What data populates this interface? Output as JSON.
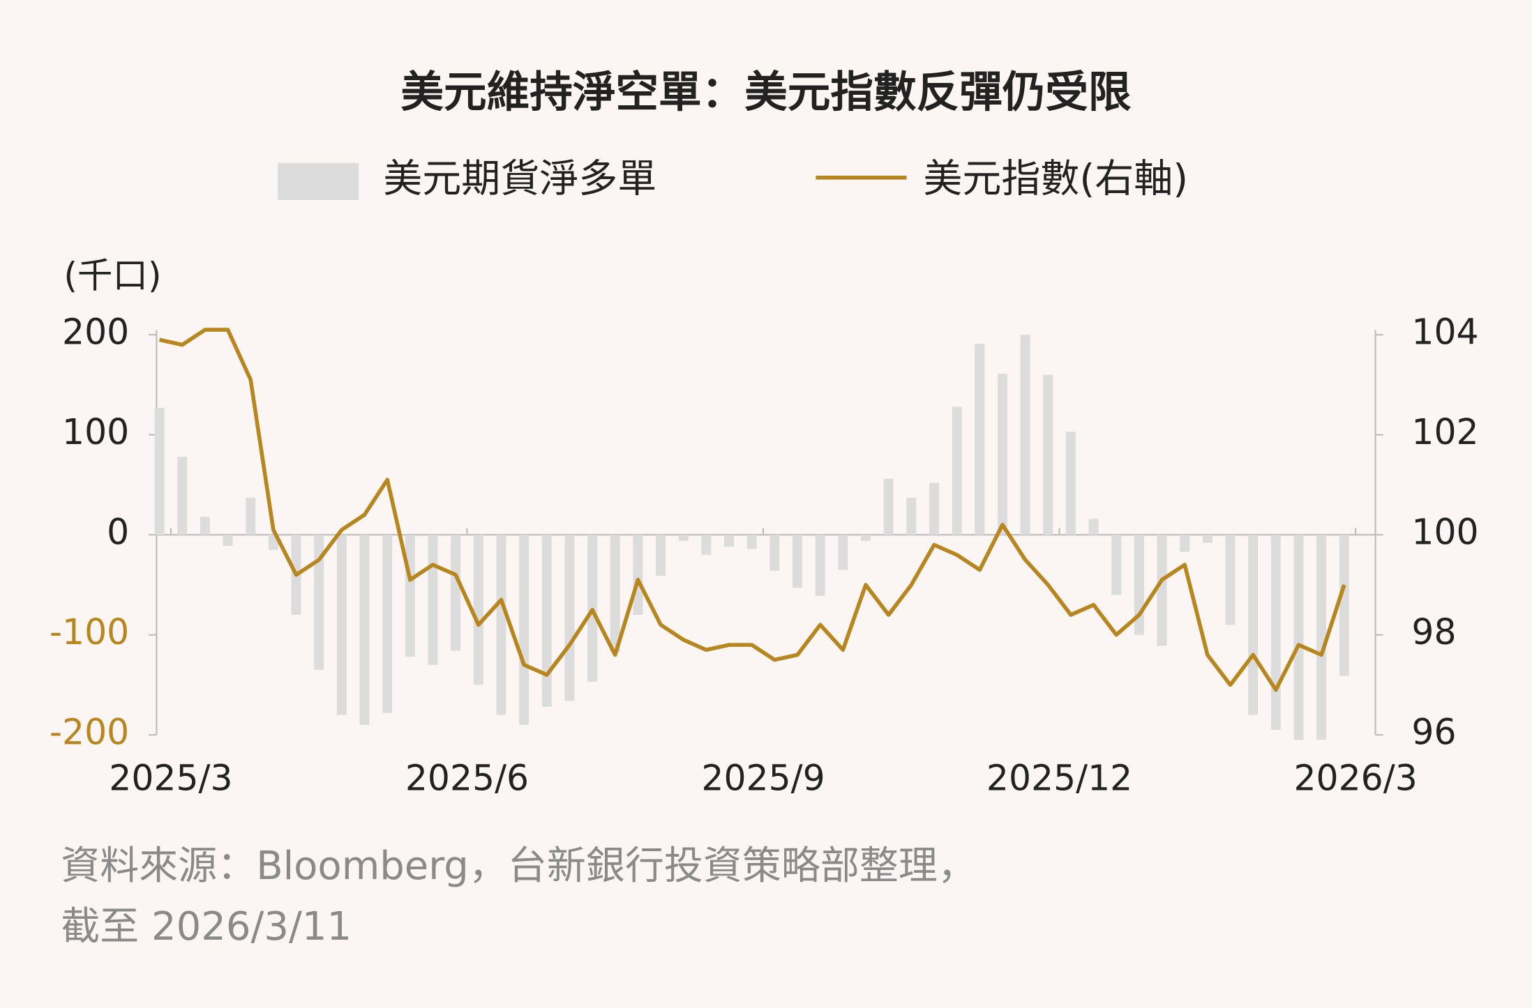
{
  "chart_data": {
    "type": "bar+line",
    "title": "美元維持淨空單：美元指數反彈仍受限",
    "y_label": "(千口)",
    "source": "資料來源：Bloomberg，台新銀行投資策略部整理，",
    "note": "截至 2026/3/11",
    "categories": [
      "2025/3",
      null,
      null,
      null,
      null,
      null,
      null,
      null,
      null,
      null,
      null,
      null,
      null,
      "2025/6",
      null,
      null,
      null,
      null,
      null,
      null,
      null,
      null,
      null,
      null,
      null,
      null,
      "2025/9",
      null,
      null,
      null,
      null,
      null,
      null,
      null,
      null,
      null,
      null,
      null,
      null,
      "2025/12",
      null,
      null,
      null,
      null,
      null,
      null,
      null,
      null,
      null,
      null,
      null,
      null,
      "2026/3"
    ],
    "series": [
      {
        "name": "美元期貨淨多單",
        "type": "bar",
        "color": "#dcdcdc",
        "values": [
          127,
          78,
          18,
          -11,
          37,
          -15,
          -80,
          -135,
          -180,
          -190,
          -178,
          -122,
          -130,
          -116,
          -150,
          -180,
          -190,
          -172,
          -166,
          -147,
          -117,
          -80,
          -41,
          -6,
          -20,
          -12,
          -14,
          -36,
          -53,
          -61,
          -35,
          -6,
          56,
          37,
          52,
          128,
          191,
          161,
          200,
          160,
          103,
          16,
          -60,
          -100,
          -111,
          -17,
          -8,
          -90,
          -180,
          -195,
          -205,
          -205,
          -141
        ]
      },
      {
        "name": "美元指數(右軸)",
        "type": "line",
        "axis": "y2",
        "color": "#b8861e",
        "values": [
          103.9,
          103.8,
          104.1,
          104.1,
          103.1,
          100.1,
          99.2,
          99.5,
          100.1,
          100.4,
          101.1,
          99.1,
          99.4,
          99.2,
          98.2,
          98.7,
          97.4,
          97.2,
          97.8,
          98.5,
          97.6,
          99.1,
          98.2,
          97.9,
          97.7,
          97.8,
          97.8,
          97.5,
          97.6,
          98.2,
          97.7,
          99.0,
          98.4,
          99.0,
          99.8,
          99.6,
          99.3,
          100.2,
          99.5,
          99.0,
          98.4,
          98.6,
          98.0,
          98.4,
          99.1,
          99.4,
          97.6,
          97.0,
          97.6,
          96.9,
          97.8,
          97.6,
          99.0
        ]
      }
    ],
    "ylim": [
      -200,
      200
    ],
    "yticks": [
      -200,
      -100,
      0,
      100,
      200
    ],
    "ytick_negative_color": "#b8861e",
    "y2lim": [
      96,
      104
    ],
    "y2ticks": [
      96,
      98,
      100,
      102,
      104
    ]
  }
}
